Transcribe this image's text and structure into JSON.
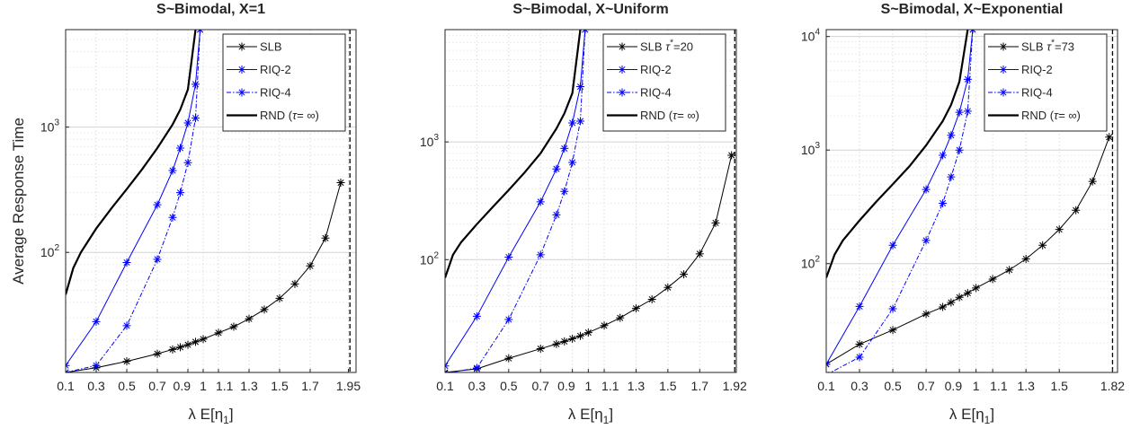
{
  "chart_data": [
    {
      "type": "line",
      "title": "S~Bimodal, X=1",
      "xlabel": "λ E[η",
      "xlabel_sub": "1",
      "xlabel_close": "]",
      "ylabel": "Average Response Time",
      "yscale": "log",
      "xlim": [
        0.1,
        2.0
      ],
      "ylim": [
        11,
        6000
      ],
      "xticks": [
        0.1,
        0.3,
        0.5,
        0.7,
        0.9,
        1.1,
        1.3,
        1.5,
        1.7,
        1.95
      ],
      "xticklabels": [
        "0.1",
        "0.3",
        "0.5",
        "0.7",
        "0.9",
        "1.1",
        "1.3",
        "1.5",
        "1.7",
        "1.95"
      ],
      "xtick_extra": [
        1.0
      ],
      "xtick_extra_labels": [
        "1"
      ],
      "yticks": [
        100,
        1000
      ],
      "ytick_base": "10",
      "ytick_exp": [
        "2",
        "3"
      ],
      "vline": 1.96,
      "legend_position": "top-right",
      "series": [
        {
          "name": "SLB",
          "color": "#000000",
          "style": "solid",
          "marker": "star",
          "x": [
            0.1,
            0.3,
            0.5,
            0.7,
            0.8,
            0.85,
            0.9,
            0.95,
            1.0,
            1.1,
            1.2,
            1.3,
            1.4,
            1.5,
            1.6,
            1.7,
            1.8,
            1.9
          ],
          "y": [
            11,
            12,
            13.5,
            15.5,
            16.8,
            17.5,
            18.3,
            19.3,
            20.3,
            22.8,
            25.5,
            29.5,
            35,
            43,
            56,
            78,
            130,
            360
          ]
        },
        {
          "name": "RIQ-2",
          "color": "#0000ff",
          "style": "solid",
          "marker": "star",
          "x": [
            0.1,
            0.3,
            0.5,
            0.7,
            0.8,
            0.85,
            0.9,
            0.95,
            0.98
          ],
          "y": [
            12.5,
            28,
            83,
            240,
            450,
            680,
            1080,
            2200,
            6000
          ]
        },
        {
          "name": "RIQ-4",
          "color": "#0000ff",
          "style": "dashdot",
          "marker": "star",
          "x": [
            0.1,
            0.3,
            0.5,
            0.7,
            0.8,
            0.85,
            0.9,
            0.95,
            0.98
          ],
          "y": [
            11,
            12.5,
            26,
            88,
            190,
            300,
            520,
            1180,
            6000
          ]
        },
        {
          "name": "RND",
          "name_tau": "τ= ∞",
          "color": "#000000",
          "style": "solid-thick",
          "marker": "none",
          "x": [
            0.1,
            0.15,
            0.2,
            0.3,
            0.4,
            0.5,
            0.6,
            0.7,
            0.8,
            0.85,
            0.9,
            0.95
          ],
          "y": [
            46,
            75,
            100,
            155,
            225,
            320,
            460,
            680,
            1050,
            1380,
            2000,
            6000
          ]
        }
      ]
    },
    {
      "type": "line",
      "title": "S~Bimodal, X~Uniform",
      "xlabel": "λ E[η",
      "xlabel_sub": "1",
      "xlabel_close": "]",
      "ylabel": "",
      "yscale": "log",
      "xlim": [
        0.1,
        1.93
      ],
      "ylim": [
        11,
        9000
      ],
      "xticks": [
        0.1,
        0.3,
        0.5,
        0.7,
        0.9,
        1.1,
        1.3,
        1.5,
        1.7,
        1.92
      ],
      "xticklabels": [
        "0.1",
        "0.3",
        "0.5",
        "0.7",
        "0.9",
        "1.1",
        "1.3",
        "1.5",
        "1.7",
        "1.92"
      ],
      "xtick_extra": [
        1.0
      ],
      "xtick_extra_labels": [
        "1"
      ],
      "yticks": [
        100,
        1000
      ],
      "ytick_base": "10",
      "ytick_exp": [
        "2",
        "3"
      ],
      "vline": 1.92,
      "legend_position": "top-right",
      "series": [
        {
          "name": "SLB",
          "name_tau": "τ",
          "name_tau_sup": "*",
          "name_tau_val": "=20",
          "color": "#000000",
          "style": "solid",
          "marker": "star",
          "x": [
            0.1,
            0.3,
            0.5,
            0.7,
            0.8,
            0.85,
            0.9,
            0.95,
            1.0,
            1.1,
            1.2,
            1.3,
            1.4,
            1.5,
            1.6,
            1.7,
            1.8,
            1.9
          ],
          "y": [
            11,
            11.8,
            14.5,
            17.5,
            19.2,
            20.2,
            21.3,
            22.5,
            24,
            27.5,
            32,
            38.5,
            46,
            58,
            75,
            112,
            205,
            770
          ]
        },
        {
          "name": "RIQ-2",
          "color": "#0000ff",
          "style": "solid",
          "marker": "star",
          "x": [
            0.1,
            0.3,
            0.5,
            0.7,
            0.8,
            0.85,
            0.9,
            0.95,
            0.98
          ],
          "y": [
            12.5,
            33,
            105,
            310,
            590,
            880,
            1450,
            2950,
            9000
          ]
        },
        {
          "name": "RIQ-4",
          "color": "#0000ff",
          "style": "dashdot",
          "marker": "star",
          "x": [
            0.1,
            0.3,
            0.5,
            0.7,
            0.8,
            0.85,
            0.9,
            0.95,
            0.98
          ],
          "y": [
            10.8,
            12,
            31,
            110,
            240,
            380,
            670,
            1500,
            9000
          ]
        },
        {
          "name": "RND",
          "name_tau": "τ= ∞",
          "color": "#000000",
          "style": "solid-thick",
          "marker": "none",
          "x": [
            0.1,
            0.15,
            0.2,
            0.3,
            0.4,
            0.5,
            0.6,
            0.7,
            0.8,
            0.85,
            0.9,
            0.95
          ],
          "y": [
            70,
            110,
            140,
            200,
            280,
            390,
            550,
            800,
            1300,
            1750,
            2600,
            9000
          ]
        }
      ]
    },
    {
      "type": "line",
      "title": "S~Bimodal, X~Exponential",
      "xlabel": "λ E[η",
      "xlabel_sub": "1",
      "xlabel_close": "]",
      "ylabel": "",
      "yscale": "log",
      "xlim": [
        0.1,
        1.85
      ],
      "ylim": [
        11,
        11500
      ],
      "xticks": [
        0.1,
        0.3,
        0.5,
        0.7,
        0.9,
        1.1,
        1.3,
        1.5,
        1.82
      ],
      "xticklabels": [
        "0.1",
        "0.3",
        "0.5",
        "0.7",
        "0.9",
        "1.1",
        "1.3",
        "1.5",
        "1.82"
      ],
      "xtick_extra": [
        1.0
      ],
      "xtick_extra_labels": [
        "1"
      ],
      "yticks": [
        100,
        1000,
        10000
      ],
      "ytick_base": "10",
      "ytick_exp": [
        "2",
        "3",
        "4"
      ],
      "vline": 1.82,
      "legend_position": "top-right",
      "series": [
        {
          "name": "SLB",
          "name_tau": "τ",
          "name_tau_sup": "*",
          "name_tau_val": "=73",
          "color": "#000000",
          "style": "solid",
          "marker": "star",
          "x": [
            0.1,
            0.3,
            0.5,
            0.7,
            0.8,
            0.85,
            0.9,
            0.95,
            1.0,
            1.1,
            1.2,
            1.3,
            1.4,
            1.5,
            1.6,
            1.7,
            1.8
          ],
          "y": [
            13,
            19.5,
            26,
            36,
            41.5,
            45.5,
            50.5,
            55,
            61,
            73,
            88,
            110,
            145,
            200,
            295,
            530,
            1300
          ]
        },
        {
          "name": "RIQ-2",
          "color": "#0000ff",
          "style": "solid",
          "marker": "star",
          "x": [
            0.1,
            0.3,
            0.5,
            0.7,
            0.8,
            0.85,
            0.9,
            0.95,
            0.98
          ],
          "y": [
            13,
            42,
            145,
            450,
            900,
            1350,
            2150,
            4200,
            11500
          ]
        },
        {
          "name": "RIQ-4",
          "color": "#0000ff",
          "style": "dashdot",
          "marker": "star",
          "x": [
            0.1,
            0.3,
            0.5,
            0.7,
            0.8,
            0.85,
            0.9,
            0.95,
            0.98
          ],
          "y": [
            10.5,
            15,
            40,
            160,
            340,
            580,
            1000,
            2200,
            11500
          ]
        },
        {
          "name": "RND",
          "name_tau": "τ= ∞",
          "color": "#000000",
          "style": "solid-thick",
          "marker": "none",
          "x": [
            0.1,
            0.15,
            0.2,
            0.3,
            0.4,
            0.5,
            0.6,
            0.7,
            0.8,
            0.85,
            0.9,
            0.95
          ],
          "y": [
            75,
            120,
            160,
            240,
            350,
            500,
            720,
            1100,
            1800,
            2500,
            4000,
            11500
          ]
        }
      ]
    }
  ]
}
